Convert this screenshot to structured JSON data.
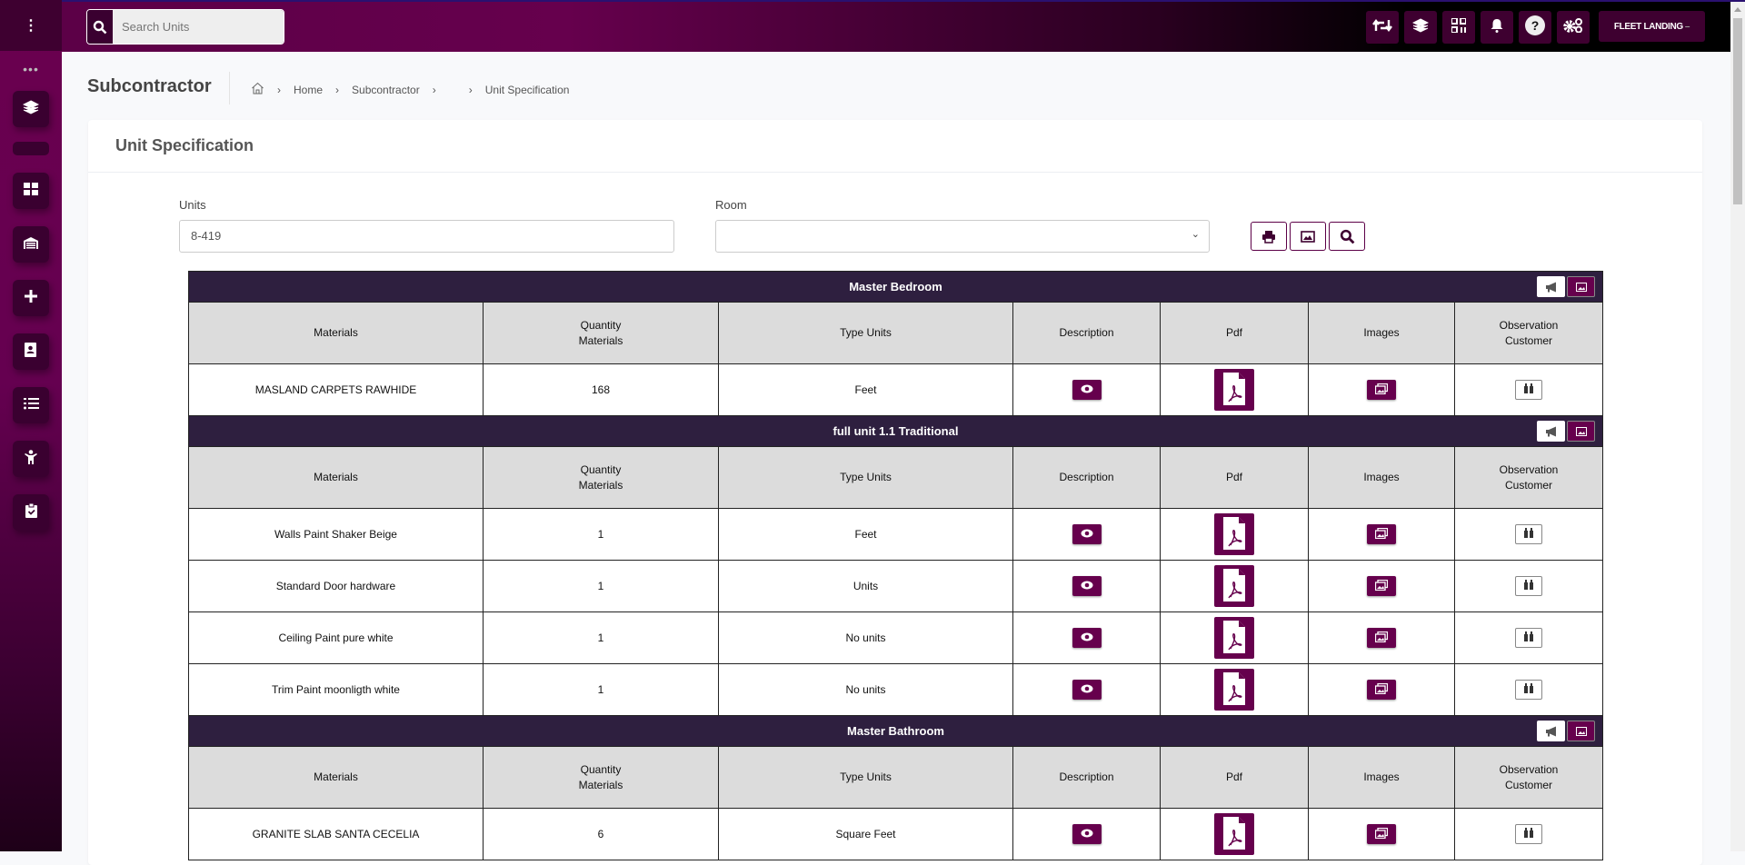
{
  "search": {
    "placeholder": "Search Units"
  },
  "topbar": {
    "icons": [
      "retweet-icon",
      "layers-icon",
      "qrcode-icon",
      "bell-icon",
      "question-icon",
      "cogs-icon"
    ],
    "user": "FLEET LANDING"
  },
  "sidebar": {
    "icons": [
      "layers-icon",
      "th-large-icon",
      "warehouse-icon",
      "plus-icon",
      "address-book-icon",
      "tasks-icon",
      "child-icon",
      "clipboard-check-icon"
    ]
  },
  "page": {
    "title": "Subcontractor",
    "breadcrumb": [
      "Home",
      "Subcontractor",
      "",
      "Unit Specification"
    ]
  },
  "card": {
    "title": "Unit Specification",
    "units_label": "Units",
    "units_value": "8-419",
    "room_label": "Room",
    "room_value": ""
  },
  "columns": [
    "Materials",
    "Quantity Materials",
    "Type Units",
    "Description",
    "Pdf",
    "Images",
    "Observation Customer"
  ],
  "groups": [
    {
      "name": "Master Bedroom",
      "rows": [
        {
          "material": "MASLAND CARPETS RAWHIDE",
          "qty": "168",
          "type": "Feet"
        }
      ]
    },
    {
      "name": "full unit 1.1 Traditional",
      "rows": [
        {
          "material": "Walls Paint Shaker Beige",
          "qty": "1",
          "type": "Feet"
        },
        {
          "material": "Standard Door hardware",
          "qty": "1",
          "type": "Units"
        },
        {
          "material": "Ceiling Paint pure white",
          "qty": "1",
          "type": "No units"
        },
        {
          "material": "Trim Paint moonligth white",
          "qty": "1",
          "type": "No units"
        }
      ]
    },
    {
      "name": "Master Bathroom",
      "rows": [
        {
          "material": "GRANITE SLAB SANTA CECELIA",
          "qty": "6",
          "type": "Square Feet"
        }
      ]
    }
  ],
  "colors": {
    "primary": "#66004d",
    "group_header": "#2e1f3f",
    "header_cell": "#dcdcdc"
  }
}
